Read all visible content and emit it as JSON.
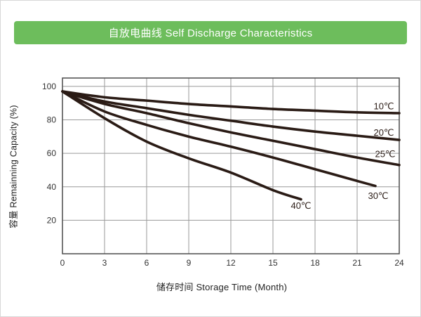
{
  "header": {
    "title": "自放电曲线 Self Discharge Characteristics",
    "bg_color": "#6dbd5c",
    "text_color": "#ffffff"
  },
  "chart_data": {
    "type": "line",
    "title": "自放电曲线 Self Discharge Characteristics",
    "xlabel": "储存时间 Storage Time (Month)",
    "ylabel": "容量 Remainning Capacity (%)",
    "xlim": [
      0,
      24
    ],
    "ylim": [
      0,
      105
    ],
    "x_ticks": [
      0,
      3,
      6,
      9,
      12,
      15,
      18,
      21,
      24
    ],
    "y_ticks": [
      20,
      40,
      60,
      80,
      100
    ],
    "grid": true,
    "legend_position": "labels-at-line-ends",
    "line_color": "#2a1b15",
    "grid_color": "#9a9a9a",
    "border_color": "#4c4c4c",
    "tick_color": "#333333",
    "series": [
      {
        "name": "10℃",
        "x": [
          0,
          3,
          6,
          9,
          12,
          15,
          18,
          21,
          24
        ],
        "y": [
          97,
          93.5,
          91.5,
          89.5,
          88,
          86.5,
          85.5,
          84.5,
          84
        ],
        "label_pos": {
          "x": 22.9,
          "y": 88.3
        }
      },
      {
        "name": "20℃",
        "x": [
          0,
          3,
          6,
          9,
          12,
          15,
          18,
          21,
          24
        ],
        "y": [
          97,
          91,
          87,
          83,
          79.5,
          76,
          73,
          70.5,
          68
        ],
        "label_pos": {
          "x": 22.9,
          "y": 72.5
        }
      },
      {
        "name": "25℃",
        "x": [
          0,
          3,
          6,
          9,
          12,
          15,
          18,
          21,
          24
        ],
        "y": [
          97,
          89.5,
          84,
          78,
          72.5,
          67.5,
          62.5,
          57.5,
          53
        ],
        "label_pos": {
          "x": 23.0,
          "y": 59.6
        }
      },
      {
        "name": "30℃",
        "x": [
          0,
          3,
          6,
          9,
          12,
          15,
          18,
          21,
          22.3
        ],
        "y": [
          97,
          85,
          77,
          70,
          64,
          57.5,
          50.5,
          43.5,
          40.5
        ],
        "label_pos": {
          "x": 22.5,
          "y": 34.6
        }
      },
      {
        "name": "40℃",
        "x": [
          0,
          3,
          6,
          9,
          12,
          15,
          17
        ],
        "y": [
          97,
          81,
          67,
          57,
          48.5,
          38,
          32.5
        ],
        "label_pos": {
          "x": 17.0,
          "y": 28.8
        }
      }
    ]
  }
}
